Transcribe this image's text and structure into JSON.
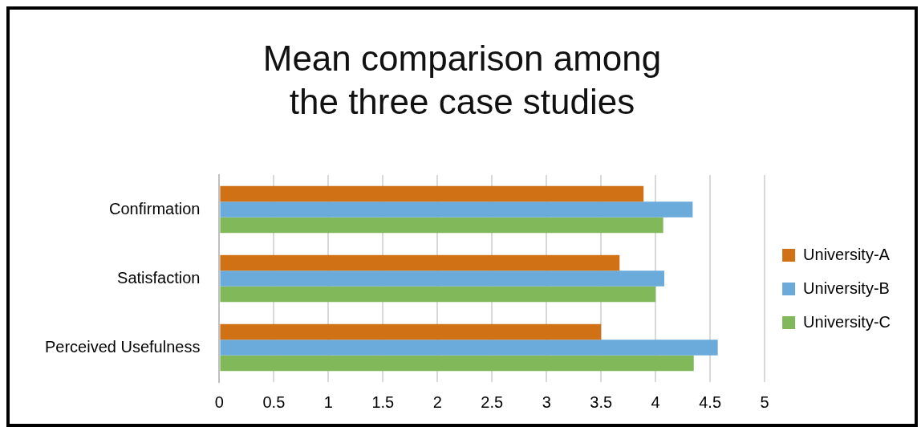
{
  "chart_data": {
    "type": "bar",
    "orientation": "horizontal",
    "title": "Mean comparison among the three case studies",
    "categories": [
      "Confirmation",
      "Satisfaction",
      "Perceived Usefulness"
    ],
    "series": [
      {
        "name": "University-A",
        "color": "#d07115",
        "values": [
          3.89,
          3.67,
          3.5
        ]
      },
      {
        "name": "University-B",
        "color": "#6aabdb",
        "values": [
          4.34,
          4.08,
          4.57
        ]
      },
      {
        "name": "University-C",
        "color": "#81b85a",
        "values": [
          4.07,
          4.0,
          4.35
        ]
      }
    ],
    "xlim": [
      0,
      5
    ],
    "xticks": [
      0,
      0.5,
      1,
      1.5,
      2,
      2.5,
      3,
      3.5,
      4,
      4.5,
      5
    ],
    "grid": "x",
    "legend": "right"
  }
}
